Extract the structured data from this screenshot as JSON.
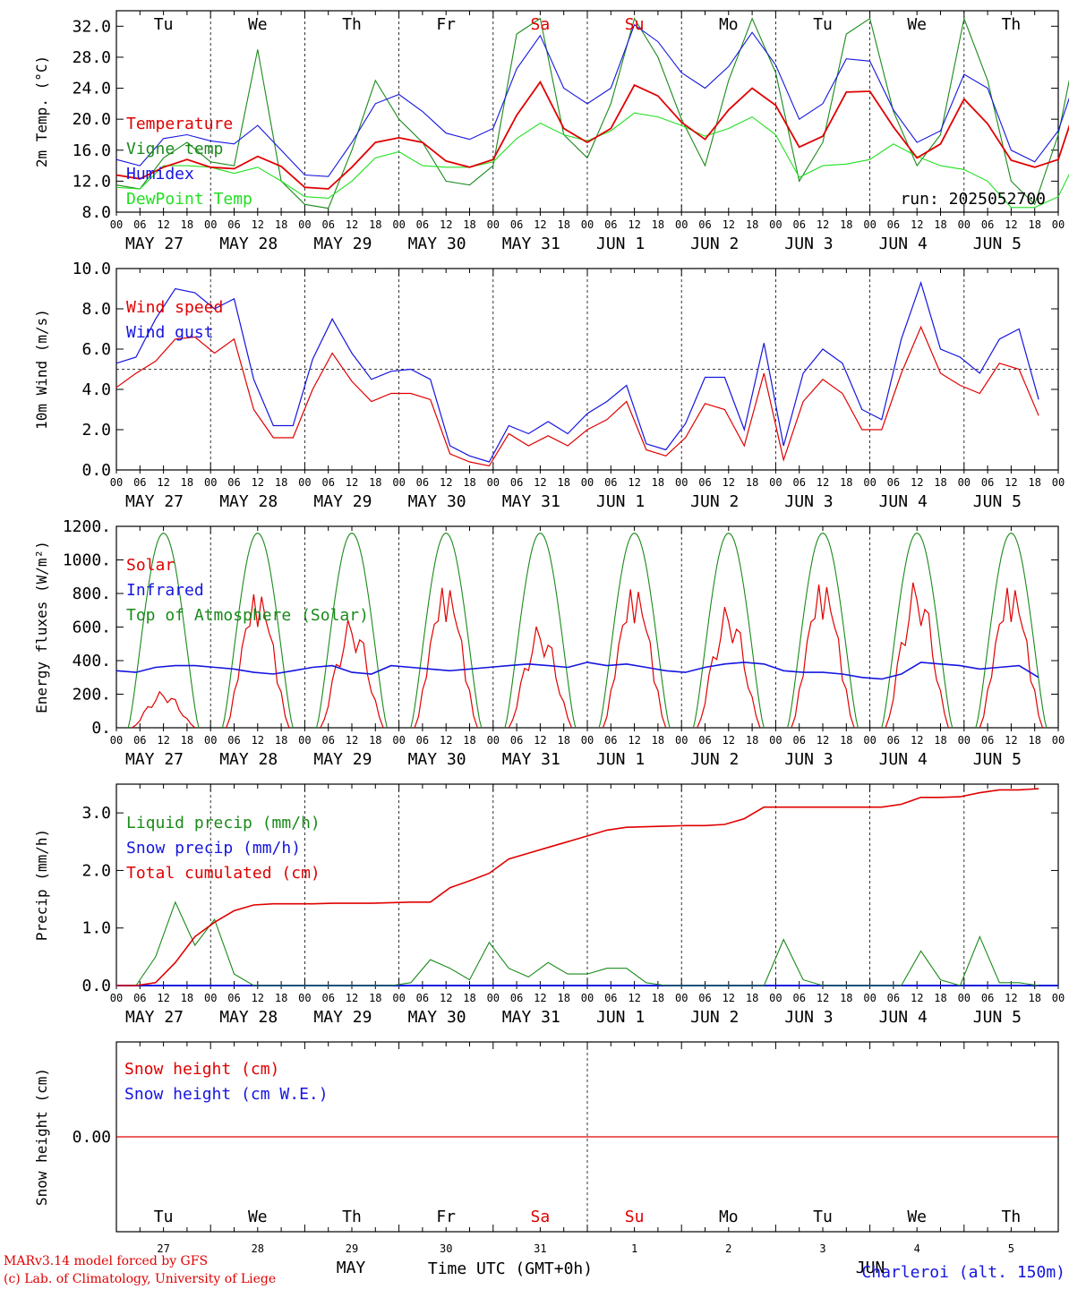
{
  "footer": {
    "credit_line1": "MARv3.14 model forced by GFS",
    "credit_line2": "(c) Lab. of Climatology, University of Liege",
    "month": "MAY",
    "xlabel": "Time UTC (GMT+0h)",
    "station": "Charleroi (alt. 150m)",
    "month2": "JUN"
  },
  "colors": {
    "red": "#e00000",
    "green": "#1a8a1a",
    "blue": "#1515e0",
    "lightgreen": "#22e022",
    "weekend": "#e00000",
    "text": "#000000"
  },
  "chart_data": [
    {
      "type": "line",
      "id": "temperature",
      "ylabel": "2m Temp. (°C)",
      "ylim": [
        8,
        34
      ],
      "yticks": [
        "8.0",
        "12.0",
        "16.0",
        "20.0",
        "24.0",
        "28.0",
        "32.0"
      ],
      "run_label": "run: 2025052700",
      "day_names": [
        "Tu",
        "We",
        "Th",
        "Fr",
        "Sa",
        "Su",
        "Mo",
        "Tu",
        "We",
        "Th"
      ],
      "hour_ticks": [
        "00",
        "06",
        "12",
        "18"
      ],
      "date_labels": [
        "MAY 27",
        "MAY 28",
        "MAY 29",
        "MAY 30",
        "MAY 31",
        "JUN  1",
        "JUN  2",
        "JUN  3",
        "JUN  4",
        "JUN  5"
      ],
      "x_hours_step": 6,
      "series": [
        {
          "name": "Temperature",
          "color": "red",
          "values": [
            12.8,
            12.3,
            13.8,
            14.8,
            13.8,
            13.6,
            15.2,
            13.9,
            11.2,
            11.0,
            13.8,
            17.0,
            17.6,
            17.0,
            14.6,
            13.8,
            14.8,
            20.5,
            24.8,
            18.8,
            17.0,
            18.8,
            24.4,
            23.0,
            19.6,
            17.4,
            21.2,
            24.0,
            21.8,
            16.4,
            17.8,
            23.5,
            23.6,
            19.0,
            15.0,
            16.8,
            22.6,
            19.4,
            14.7,
            13.8,
            14.8,
            24.0,
            18.2,
            13.6,
            12.4,
            15.0,
            18.5,
            13.5
          ]
        },
        {
          "name": "Vigne temp",
          "color": "green",
          "values": [
            11.5,
            11.0,
            15.0,
            17.0,
            14.5,
            14.0,
            29.0,
            12.0,
            9.0,
            8.5,
            16.0,
            25.0,
            20.0,
            17.0,
            12.0,
            11.5,
            14.0,
            31.0,
            33.0,
            18.0,
            15.0,
            22.0,
            33.0,
            28.0,
            20.0,
            14.0,
            25.0,
            33.0,
            26.0,
            12.0,
            17.0,
            31.0,
            33.0,
            21.0,
            14.0,
            18.0,
            33.0,
            25.0,
            12.0,
            9.0,
            18.0,
            33.0,
            22.0,
            12.0,
            9.0,
            18.0,
            29.0,
            10.0
          ]
        },
        {
          "name": "Humidex",
          "color": "blue",
          "values": [
            14.8,
            14.0,
            17.5,
            18.0,
            17.2,
            16.8,
            19.2,
            16.0,
            12.8,
            12.6,
            17.0,
            22.0,
            23.2,
            21.0,
            18.2,
            17.4,
            18.8,
            26.5,
            30.8,
            24.0,
            22.0,
            24.0,
            32.2,
            30.0,
            26.0,
            24.0,
            26.8,
            31.2,
            27.0,
            20.0,
            22.0,
            27.8,
            27.5,
            21.2,
            17.0,
            18.5,
            25.8,
            24.0,
            16.0,
            14.5,
            18.5,
            27.5,
            20.0,
            15.0,
            14.0,
            17.0,
            19.0,
            14.0
          ]
        },
        {
          "name": "DewPoint Temp",
          "color": "lightgreen",
          "values": [
            11.2,
            11.0,
            14.0,
            14.0,
            13.8,
            13.0,
            13.8,
            12.0,
            10.0,
            9.8,
            12.0,
            15.0,
            15.8,
            14.0,
            13.8,
            13.8,
            14.5,
            17.5,
            19.5,
            18.0,
            17.2,
            18.5,
            20.8,
            20.3,
            19.2,
            17.8,
            18.8,
            20.3,
            18.0,
            12.5,
            14.0,
            14.2,
            14.8,
            16.8,
            15.2,
            14.0,
            13.5,
            12.0,
            8.6,
            8.6,
            10.0,
            16.2,
            13.8,
            11.5,
            11.5,
            12.0,
            11.5,
            9.8
          ]
        }
      ]
    },
    {
      "type": "line",
      "id": "wind",
      "ylabel": "10m Wind (m/s)",
      "ylim": [
        0,
        10
      ],
      "yticks": [
        "0.0",
        "2.0",
        "4.0",
        "6.0",
        "8.0",
        "10.0"
      ],
      "reference_line": 5,
      "date_labels": [
        "MAY 27",
        "MAY 28",
        "MAY 29",
        "MAY 30",
        "MAY 31",
        "JUN  1",
        "JUN  2",
        "JUN  3",
        "JUN  4",
        "JUN  5"
      ],
      "series": [
        {
          "name": "Wind speed",
          "color": "red",
          "values": [
            4.1,
            4.8,
            5.4,
            6.5,
            6.6,
            5.8,
            6.5,
            3.0,
            1.6,
            1.6,
            4.0,
            5.8,
            4.4,
            3.4,
            3.8,
            3.8,
            3.5,
            0.8,
            0.4,
            0.2,
            1.8,
            1.2,
            1.7,
            1.2,
            2.0,
            2.5,
            3.4,
            1.0,
            0.7,
            1.6,
            3.3,
            3.0,
            1.2,
            4.8,
            0.5,
            3.4,
            4.5,
            3.8,
            2.0,
            2.0,
            4.8,
            7.1,
            4.8,
            4.2,
            3.8,
            5.3,
            5.0,
            2.7
          ]
        },
        {
          "name": "Wind gust",
          "color": "blue",
          "values": [
            5.3,
            5.6,
            7.5,
            9.0,
            8.8,
            8.0,
            8.5,
            4.5,
            2.2,
            2.2,
            5.5,
            7.5,
            5.8,
            4.5,
            4.9,
            5.0,
            4.5,
            1.2,
            0.7,
            0.4,
            2.2,
            1.8,
            2.4,
            1.8,
            2.8,
            3.4,
            4.2,
            1.3,
            1.0,
            2.3,
            4.6,
            4.6,
            2.0,
            6.3,
            1.2,
            4.8,
            6.0,
            5.3,
            3.0,
            2.5,
            6.5,
            9.3,
            6.0,
            5.6,
            4.8,
            6.5,
            7.0,
            3.5
          ]
        }
      ]
    },
    {
      "type": "line",
      "id": "energy",
      "ylabel": "Energy fluxes (W/m²)",
      "ylim": [
        0,
        1200
      ],
      "yticks": [
        "0.",
        "200.",
        "400.",
        "600.",
        "800.",
        "1000.",
        "1200."
      ],
      "date_labels": [
        "MAY 27",
        "MAY 28",
        "MAY 29",
        "MAY 30",
        "MAY 31",
        "JUN  1",
        "JUN  2",
        "JUN  3",
        "JUN  4",
        "JUN  5"
      ],
      "series": [
        {
          "name": "Solar",
          "color": "red",
          "daily_peaks": [
            220,
            820,
            660,
            860,
            620,
            850,
            740,
            880,
            890,
            860
          ]
        },
        {
          "name": "Infrared",
          "color": "blue",
          "values": [
            340,
            330,
            360,
            370,
            370,
            360,
            350,
            330,
            320,
            340,
            360,
            370,
            330,
            320,
            370,
            360,
            350,
            340,
            350,
            360,
            370,
            380,
            370,
            360,
            390,
            370,
            380,
            360,
            340,
            330,
            360,
            380,
            390,
            380,
            340,
            330,
            330,
            320,
            300,
            290,
            320,
            390,
            380,
            370,
            350,
            360,
            370,
            300
          ]
        },
        {
          "name": "Top of Atmosphere (Solar)",
          "color": "green",
          "daily_peak": 1160
        }
      ]
    },
    {
      "type": "line",
      "id": "precip",
      "ylabel": "Precip (mm/h)",
      "ylim": [
        0,
        3.5
      ],
      "yticks": [
        "0.0",
        "1.0",
        "2.0",
        "3.0"
      ],
      "date_labels": [
        "MAY 27",
        "MAY 28",
        "MAY 29",
        "MAY 30",
        "MAY 31",
        "JUN  1",
        "JUN  2",
        "JUN  3",
        "JUN  4",
        "JUN  5"
      ],
      "series": [
        {
          "name": "Liquid precip (mm/h)",
          "color": "green",
          "values": [
            0,
            0,
            0.5,
            1.45,
            0.7,
            1.15,
            0.2,
            0,
            0,
            0,
            0,
            0,
            0,
            0,
            0,
            0.05,
            0.45,
            0.3,
            0.1,
            0.75,
            0.3,
            0.15,
            0.4,
            0.2,
            0.2,
            0.3,
            0.3,
            0.05,
            0,
            0,
            0,
            0,
            0,
            0,
            0.8,
            0.1,
            0,
            0,
            0,
            0,
            0,
            0.6,
            0.1,
            0,
            0.85,
            0.05,
            0.05,
            0
          ]
        },
        {
          "name": "Snow precip (mm/h)",
          "color": "blue",
          "values": "all zero"
        },
        {
          "name": "Total cumulated (cm)",
          "color": "red",
          "values": [
            0,
            0,
            0.05,
            0.4,
            0.85,
            1.1,
            1.3,
            1.4,
            1.42,
            1.42,
            1.42,
            1.43,
            1.43,
            1.43,
            1.44,
            1.45,
            1.45,
            1.7,
            1.82,
            1.95,
            2.2,
            2.3,
            2.4,
            2.5,
            2.6,
            2.7,
            2.75,
            2.76,
            2.77,
            2.78,
            2.78,
            2.8,
            2.9,
            3.1,
            3.1,
            3.1,
            3.1,
            3.1,
            3.1,
            3.1,
            3.15,
            3.27,
            3.27,
            3.28,
            3.35,
            3.4,
            3.4,
            3.42
          ]
        }
      ]
    },
    {
      "type": "line",
      "id": "snow",
      "ylabel": "Snow height (cm)",
      "ytick": "0.00",
      "day_names": [
        "Tu",
        "We",
        "Th",
        "Fr",
        "Sa",
        "Su",
        "Mo",
        "Tu",
        "We",
        "Th"
      ],
      "day_numbers": [
        "27",
        "28",
        "29",
        "30",
        "31",
        "1",
        "2",
        "3",
        "4",
        "5"
      ],
      "series": [
        {
          "name": "Snow height (cm)",
          "color": "red",
          "values": "all zero"
        },
        {
          "name": "Snow height (cm W.E.)",
          "color": "blue",
          "values": "all zero"
        }
      ]
    }
  ]
}
